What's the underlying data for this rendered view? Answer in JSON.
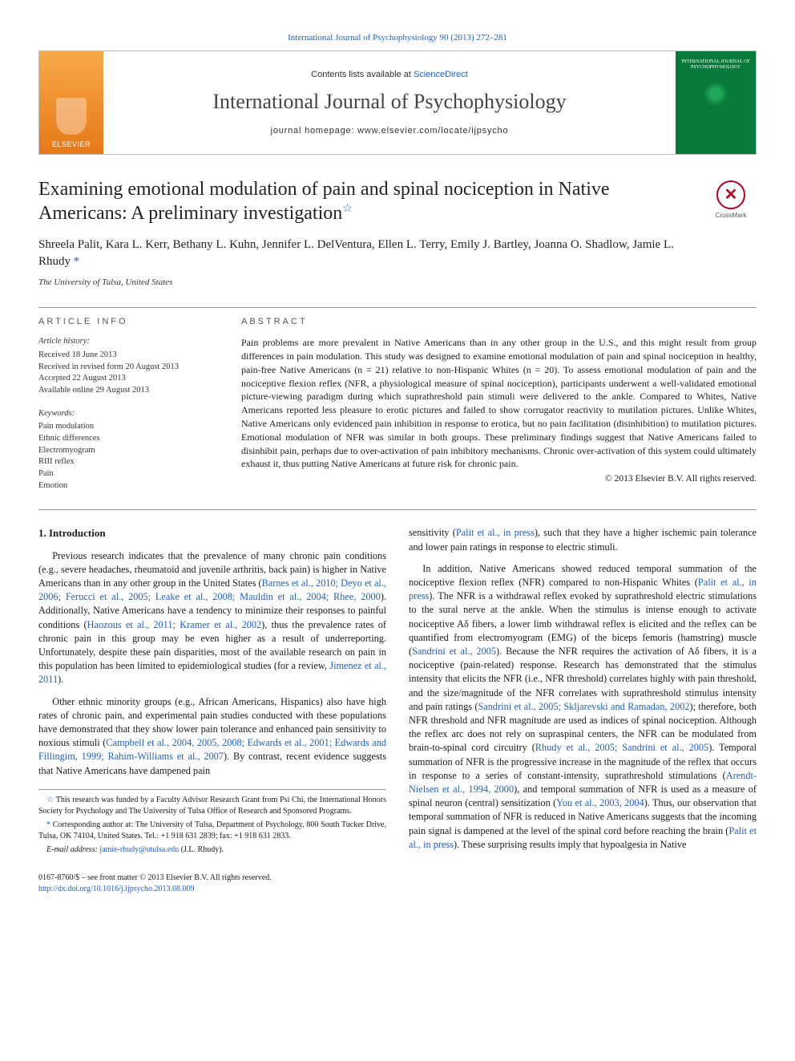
{
  "top_citation_link": "International Journal of Psychophysiology 90 (2013) 272–281",
  "header": {
    "contents_prefix": "Contents lists available at ",
    "contents_link": "ScienceDirect",
    "journal": "International Journal of Psychophysiology",
    "homepage_prefix": "journal homepage: ",
    "homepage": "www.elsevier.com/locate/ijpsycho",
    "publisher_logo": "ELSEVIER",
    "cover_text": "INTERNATIONAL JOURNAL OF PSYCHOPHYSIOLOGY"
  },
  "crossmark": "CrossMark",
  "title": "Examining emotional modulation of pain and spinal nociception in Native Americans: A preliminary investigation",
  "title_note_glyph": "☆",
  "authors": "Shreela Palit, Kara L. Kerr, Bethany L. Kuhn, Jennifer L. DelVentura, Ellen L. Terry, Emily J. Bartley, Joanna O. Shadlow, Jamie L. Rhudy ",
  "corr_glyph": "*",
  "affiliation": "The University of Tulsa, United States",
  "article_info": {
    "head": "article info",
    "history_head": "Article history:",
    "received": "Received 18 June 2013",
    "revised": "Received in revised form 20 August 2013",
    "accepted": "Accepted 22 August 2013",
    "online": "Available online 29 August 2013",
    "keywords_head": "Keywords:",
    "keywords": [
      "Pain modulation",
      "Ethnic differences",
      "Electromyogram",
      "RIII reflex",
      "Pain",
      "Emotion"
    ]
  },
  "abstract": {
    "head": "abstract",
    "text": "Pain problems are more prevalent in Native Americans than in any other group in the U.S., and this might result from group differences in pain modulation. This study was designed to examine emotional modulation of pain and spinal nociception in healthy, pain-free Native Americans (n = 21) relative to non-Hispanic Whites (n = 20). To assess emotional modulation of pain and the nociceptive flexion reflex (NFR, a physiological measure of spinal nociception), participants underwent a well-validated emotional picture-viewing paradigm during which suprathreshold pain stimuli were delivered to the ankle. Compared to Whites, Native Americans reported less pleasure to erotic pictures and failed to show corrugator reactivity to mutilation pictures. Unlike Whites, Native Americans only evidenced pain inhibition in response to erotica, but no pain facilitation (disinhibition) to mutilation pictures. Emotional modulation of NFR was similar in both groups. These preliminary findings suggest that Native Americans failed to disinhibit pain, perhaps due to over-activation of pain inhibitory mechanisms. Chronic over-activation of this system could ultimately exhaust it, thus putting Native Americans at future risk for chronic pain.",
    "copyright": "© 2013 Elsevier B.V. All rights reserved."
  },
  "intro": {
    "head": "1. Introduction",
    "p1a": "Previous research indicates that the prevalence of many chronic pain conditions (e.g., severe headaches, rheumatoid and juvenile arthritis, back pain) is higher in Native Americans than in any other group in the United States (",
    "p1cite1": "Barnes et al., 2010; Deyo et al., 2006; Ferucci et al., 2005; Leake et al., 2008; Mauldin et al., 2004; Rhee, 2000",
    "p1b": "). Additionally, Native Americans have a tendency to minimize their responses to painful conditions (",
    "p1cite2": "Haozous et al., 2011; Kramer et al., 2002",
    "p1c": "), thus the prevalence rates of chronic pain in this group may be even higher as a result of underreporting. Unfortunately, despite these pain disparities, most of the available research on pain in this population has been limited to epidemiological studies (for a review, ",
    "p1cite3": "Jimenez et al., 2011",
    "p1d": ").",
    "p2a": "Other ethnic minority groups (e.g., African Americans, Hispanics) also have high rates of chronic pain, and experimental pain studies conducted with these populations have demonstrated that they show lower pain tolerance and enhanced pain sensitivity to noxious stimuli (",
    "p2cite1": "Campbell et al., 2004, 2005, 2008; Edwards et al., 2001; Edwards and Fillingim, 1999; Rahim-Williams et al., 2007",
    "p2b": "). By contrast, recent evidence suggests that Native Americans have dampened pain",
    "p3a": "sensitivity (",
    "p3cite1": "Palit et al., in press",
    "p3b": "), such that they have a higher ischemic pain tolerance and lower pain ratings in response to electric stimuli.",
    "p4a": "In addition, Native Americans showed reduced temporal summation of the nociceptive flexion reflex (NFR) compared to non-Hispanic Whites (",
    "p4cite1": "Palit et al., in press",
    "p4b": "). The NFR is a withdrawal reflex evoked by suprathreshold electric stimulations to the sural nerve at the ankle. When the stimulus is intense enough to activate nociceptive Aδ fibers, a lower limb withdrawal reflex is elicited and the reflex can be quantified from electromyogram (EMG) of the biceps femoris (hamstring) muscle (",
    "p4cite2": "Sandrini et al., 2005",
    "p4c": "). Because the NFR requires the activation of Aδ fibers, it is a nociceptive (pain-related) response. Research has demonstrated that the stimulus intensity that elicits the NFR (i.e., NFR threshold) correlates highly with pain threshold, and the size/magnitude of the NFR correlates with suprathreshold stimulus intensity and pain ratings (",
    "p4cite3": "Sandrini et al., 2005; Skljarevski and Ramadan, 2002",
    "p4d": "); therefore, both NFR threshold and NFR magnitude are used as indices of spinal nociception. Although the reflex arc does not rely on supraspinal centers, the NFR can be modulated from brain-to-spinal cord circuitry (",
    "p4cite4": "Rhudy et al., 2005; Sandrini et al., 2005",
    "p4e": "). Temporal summation of NFR is the progressive increase in the magnitude of the reflex that occurs in response to a series of constant-intensity, suprathreshold stimulations (",
    "p4cite5": "Arendt-Nielsen et al., 1994, 2000",
    "p4f": "), and temporal summation of NFR is used as a measure of spinal neuron (central) sensitization (",
    "p4cite6": "You et al., 2003, 2004",
    "p4g": "). Thus, our observation that temporal summation of NFR is reduced in Native Americans suggests that the incoming pain signal is dampened at the level of the spinal cord before reaching the brain (",
    "p4cite7": "Palit et al., in press",
    "p4h": "). These surprising results imply that hypoalgesia in Native"
  },
  "footnotes": {
    "funding_glyph": "☆",
    "funding": " This research was funded by a Faculty Advisor Research Grant from Psi Chi, the International Honors Society for Psychology and The University of Tulsa Office of Research and Sponsored Programs.",
    "corr_glyph": "*",
    "corr": " Corresponding author at: The University of Tulsa, Department of Psychology, 800 South Tucker Drive, Tulsa, OK 74104, United States. Tel.: +1 918 631 2839; fax: +1 918 631 2833.",
    "email_label": "E-mail address: ",
    "email": "jamie-rhudy@utulsa.edu",
    "email_suffix": " (J.L. Rhudy)."
  },
  "footer": {
    "issn": "0167-8760/$ – see front matter © 2013 Elsevier B.V. All rights reserved.",
    "doi": "http://dx.doi.org/10.1016/j.ijpsycho.2013.08.009"
  }
}
